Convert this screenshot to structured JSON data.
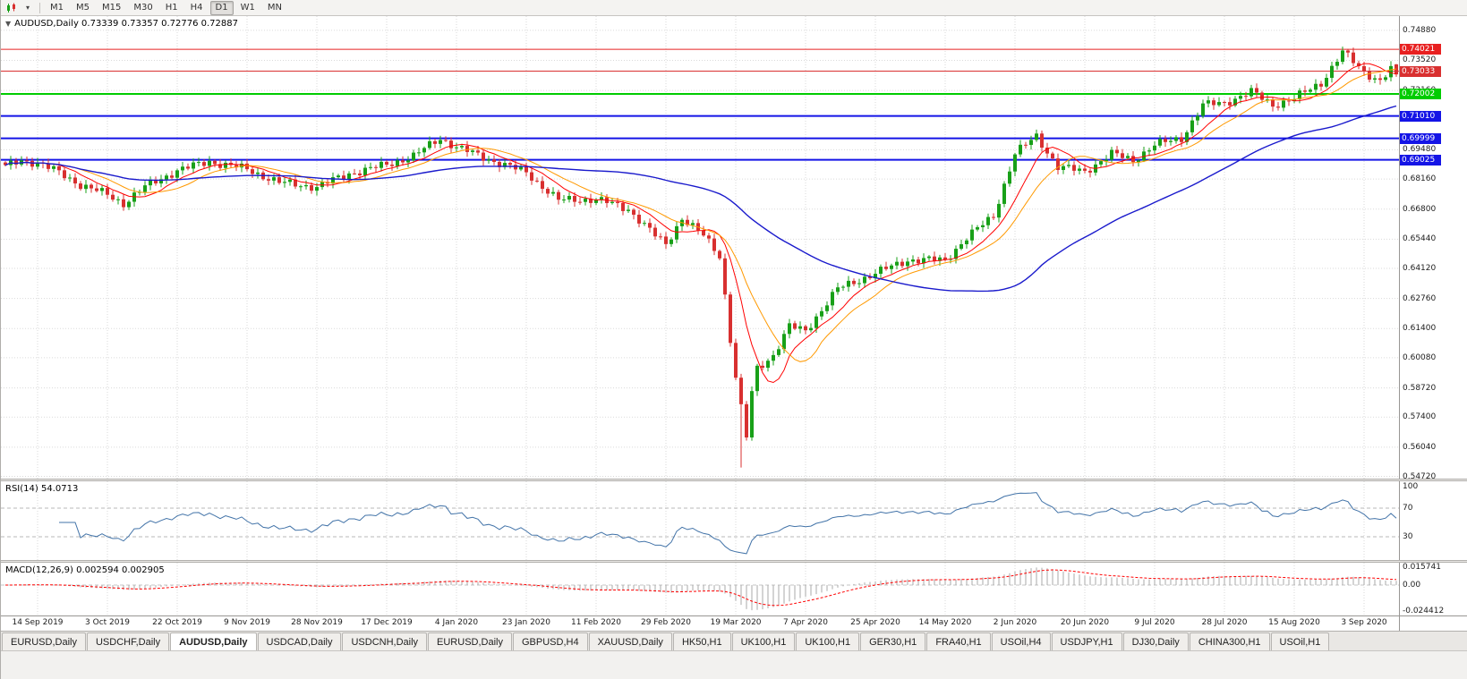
{
  "toolbar": {
    "timeframes": [
      "M1",
      "M5",
      "M15",
      "M30",
      "H1",
      "H4",
      "D1",
      "W1",
      "MN"
    ],
    "active_timeframe": "D1"
  },
  "main_chart": {
    "collapse_arrow": "▼",
    "title_text": "AUDUSD,Daily 0.73339 0.73357 0.72776 0.72887",
    "axis_ticks": [
      "0.74880",
      "0.73520",
      "0.72160",
      "0.69480",
      "0.68160",
      "0.66800",
      "0.65440",
      "0.64120",
      "0.62760",
      "0.61400",
      "0.60080",
      "0.58720",
      "0.57400",
      "0.56040",
      "0.54720"
    ],
    "hlines": [
      {
        "price": 0.74021,
        "label": "0.74021",
        "color": "#e82020",
        "width": 1
      },
      {
        "price": 0.73033,
        "label": "0.73033",
        "color": "#d93030",
        "width": 1
      },
      {
        "price": 0.72002,
        "label": "0.72002",
        "color": "#00cc00",
        "width": 2
      },
      {
        "price": 0.7101,
        "label": "0.71010",
        "color": "#1414e6",
        "width": 2
      },
      {
        "price": 0.69999,
        "label": "0.69999",
        "color": "#1414e6",
        "width": 2
      },
      {
        "price": 0.69025,
        "label": "0.69025",
        "color": "#1414e6",
        "width": 2
      }
    ]
  },
  "rsi_panel": {
    "label": "RSI(14) 54.0713",
    "axis_ticks": [
      "100",
      "70",
      "30"
    ],
    "levels": [
      70,
      30
    ],
    "line_color": "#4273a8"
  },
  "macd_panel": {
    "label": "MACD(12,26,9) 0.002594 0.002905",
    "axis_ticks": [
      "0.015741",
      "0.00",
      "-0.024412"
    ],
    "histogram_color": "#a8a8a8",
    "signal_color": "#ff0000"
  },
  "date_axis": [
    "14 Sep 2019",
    "3 Oct 2019",
    "22 Oct 2019",
    "9 Nov 2019",
    "28 Nov 2019",
    "17 Dec 2019",
    "4 Jan 2020",
    "23 Jan 2020",
    "11 Feb 2020",
    "29 Feb 2020",
    "19 Mar 2020",
    "7 Apr 2020",
    "25 Apr 2020",
    "14 May 2020",
    "2 Jun 2020",
    "20 Jun 2020",
    "9 Jul 2020",
    "28 Jul 2020",
    "15 Aug 2020",
    "3 Sep 2020"
  ],
  "tabs": {
    "active_index": 2,
    "items": [
      "EURUSD,Daily",
      "USDCHF,Daily",
      "AUDUSD,Daily",
      "USDCAD,Daily",
      "USDCNH,Daily",
      "EURUSD,Daily",
      "GBPUSD,H4",
      "XAUUSD,Daily",
      "HK50,H1",
      "UK100,H1",
      "UK100,H1",
      "GER30,H1",
      "FRA40,H1",
      "USOil,H4",
      "USDJPY,H1",
      "DJ30,Daily",
      "CHINA300,H1",
      "USOil,H1"
    ],
    "note": "AUDUSD,Daily is the selected chart tab"
  },
  "chart_data": {
    "type": "candlestick",
    "symbol": "AUDUSD",
    "timeframe": "Daily",
    "title": "AUDUSD,Daily",
    "ohlc_current": {
      "open": 0.73339,
      "high": 0.73357,
      "low": 0.72776,
      "close": 0.72887
    },
    "y_axis_range": [
      0.5462,
      0.7552
    ],
    "x_tick_labels": [
      "14 Sep 2019",
      "3 Oct 2019",
      "22 Oct 2019",
      "9 Nov 2019",
      "28 Nov 2019",
      "17 Dec 2019",
      "4 Jan 2020",
      "23 Jan 2020",
      "11 Feb 2020",
      "29 Feb 2020",
      "19 Mar 2020",
      "7 Apr 2020",
      "25 Apr 2020",
      "14 May 2020",
      "2 Jun 2020",
      "20 Jun 2020",
      "9 Jul 2020",
      "28 Jul 2020",
      "15 Aug 2020",
      "3 Sep 2020"
    ],
    "candle_count": 260,
    "candles_per_tick": 13,
    "first_tick_candle_index": 6,
    "close_anchors": [
      [
        0,
        0.687
      ],
      [
        3,
        0.69
      ],
      [
        6,
        0.689
      ],
      [
        10,
        0.6845
      ],
      [
        14,
        0.679
      ],
      [
        19,
        0.6745
      ],
      [
        22,
        0.6705
      ],
      [
        26,
        0.678
      ],
      [
        32,
        0.6855
      ],
      [
        38,
        0.6895
      ],
      [
        45,
        0.686
      ],
      [
        51,
        0.68
      ],
      [
        58,
        0.678
      ],
      [
        64,
        0.684
      ],
      [
        71,
        0.688
      ],
      [
        76,
        0.692
      ],
      [
        81,
        0.7
      ],
      [
        84,
        0.696
      ],
      [
        90,
        0.6905
      ],
      [
        97,
        0.6845
      ],
      [
        103,
        0.672
      ],
      [
        110,
        0.6725
      ],
      [
        116,
        0.668
      ],
      [
        121,
        0.656
      ],
      [
        123,
        0.652
      ],
      [
        126,
        0.664
      ],
      [
        130,
        0.656
      ],
      [
        133,
        0.647
      ],
      [
        134,
        0.629
      ],
      [
        135,
        0.609
      ],
      [
        136,
        0.592
      ],
      [
        137,
        0.578
      ],
      [
        138,
        0.565
      ],
      [
        139,
        0.585
      ],
      [
        140,
        0.596
      ],
      [
        143,
        0.602
      ],
      [
        146,
        0.615
      ],
      [
        149,
        0.613
      ],
      [
        155,
        0.632
      ],
      [
        162,
        0.639
      ],
      [
        168,
        0.645
      ],
      [
        175,
        0.645
      ],
      [
        179,
        0.655
      ],
      [
        184,
        0.665
      ],
      [
        188,
        0.693
      ],
      [
        192,
        0.701
      ],
      [
        196,
        0.687
      ],
      [
        201,
        0.685
      ],
      [
        206,
        0.693
      ],
      [
        210,
        0.69
      ],
      [
        214,
        0.697
      ],
      [
        219,
        0.7
      ],
      [
        223,
        0.715
      ],
      [
        227,
        0.716
      ],
      [
        232,
        0.721
      ],
      [
        236,
        0.715
      ],
      [
        240,
        0.718
      ],
      [
        245,
        0.725
      ],
      [
        249,
        0.739
      ],
      [
        253,
        0.73
      ],
      [
        256,
        0.726
      ],
      [
        258,
        0.731
      ],
      [
        259,
        0.7289
      ]
    ],
    "spike_low": {
      "index": 137,
      "price": 0.5512
    },
    "spike_high": {
      "index": 249,
      "price": 0.7414
    },
    "colors": {
      "up": "#18a018",
      "down": "#d83030"
    },
    "moving_averages": [
      {
        "period": 8,
        "color": "#ff0000",
        "width": 1
      },
      {
        "period": 14,
        "color": "#ff9900",
        "width": 1
      },
      {
        "period": 55,
        "color": "#1a1acc",
        "width": 1.4
      }
    ],
    "horizontal_levels": [
      0.74021,
      0.73033,
      0.72002,
      0.7101,
      0.69999,
      0.69025
    ],
    "indicators": [
      {
        "name": "RSI",
        "period": 14,
        "current": 54.0713,
        "range": [
          0,
          100
        ],
        "levels": [
          70,
          30
        ]
      },
      {
        "name": "MACD",
        "fast": 12,
        "slow": 26,
        "signal": 9,
        "current_macd": 0.002594,
        "current_signal": 0.002905,
        "axis_max": 0.015741,
        "axis_min": -0.024412
      }
    ]
  }
}
